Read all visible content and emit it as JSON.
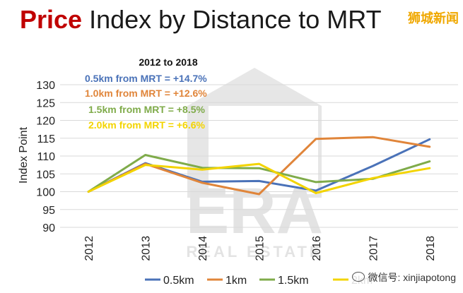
{
  "title": {
    "accent": "Price",
    "rest": " Index by Distance to MRT"
  },
  "watermark_top": "狮城新闻",
  "wechat_label": "微信号: xinjiapotong",
  "logo": {
    "text": "ERA",
    "subtext": "REAL ESTATE"
  },
  "chart_data": {
    "type": "line",
    "x": [
      "2012",
      "2013",
      "2014",
      "2015",
      "2016",
      "2017",
      "2018"
    ],
    "ylabel": "Index Point",
    "xlabel": "",
    "ylim": [
      90,
      130
    ],
    "yticks": [
      90,
      95,
      100,
      105,
      110,
      115,
      120,
      125,
      130
    ],
    "grid": "horizontal",
    "legend": "bottom",
    "series": [
      {
        "name": "0.5km",
        "color": "#4a72b8",
        "values": [
          100,
          108.0,
          102.8,
          103.0,
          100.3,
          107.2,
          114.7
        ]
      },
      {
        "name": "1km",
        "color": "#e0853a",
        "values": [
          100,
          107.8,
          102.5,
          99.3,
          114.8,
          115.3,
          112.6
        ]
      },
      {
        "name": "1.5km",
        "color": "#7fab4a",
        "values": [
          100,
          110.3,
          106.7,
          106.6,
          102.7,
          103.6,
          108.5
        ]
      },
      {
        "name": "2km",
        "color": "#f3d400",
        "values": [
          100,
          107.5,
          106.2,
          107.8,
          99.6,
          103.8,
          106.6
        ]
      }
    ],
    "annotations": {
      "heading": "2012 to 2018",
      "lines": [
        {
          "text": "0.5km from MRT = +14.7%",
          "color": "#4a72b8"
        },
        {
          "text": "1.0km from MRT =  +12.6%",
          "color": "#e0853a"
        },
        {
          "text": "1.5km from MRT = +8.5%",
          "color": "#7fab4a"
        },
        {
          "text": "2.0km from MRT = +6.6%",
          "color": "#f3d400"
        }
      ]
    }
  }
}
